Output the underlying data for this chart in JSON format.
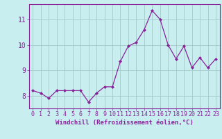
{
  "x": [
    0,
    1,
    2,
    3,
    4,
    5,
    6,
    7,
    8,
    9,
    10,
    11,
    12,
    13,
    14,
    15,
    16,
    17,
    18,
    19,
    20,
    21,
    22,
    23
  ],
  "y": [
    8.2,
    8.1,
    7.9,
    8.2,
    8.2,
    8.2,
    8.2,
    7.75,
    8.1,
    8.35,
    8.35,
    9.35,
    9.95,
    10.1,
    10.6,
    11.35,
    11.0,
    10.0,
    9.45,
    9.95,
    9.1,
    9.5,
    9.1,
    9.45
  ],
  "line_color": "#882299",
  "marker": "D",
  "marker_size": 2,
  "bg_color": "#c8eef0",
  "grid_color": "#aacccc",
  "ylabel_ticks": [
    8,
    9,
    10,
    11
  ],
  "xlabel": "Windchill (Refroidissement éolien,°C)",
  "xlabel_fontsize": 6.5,
  "tick_fontsize": 6,
  "ylim": [
    7.5,
    11.6
  ],
  "xlim": [
    -0.5,
    23.5
  ]
}
